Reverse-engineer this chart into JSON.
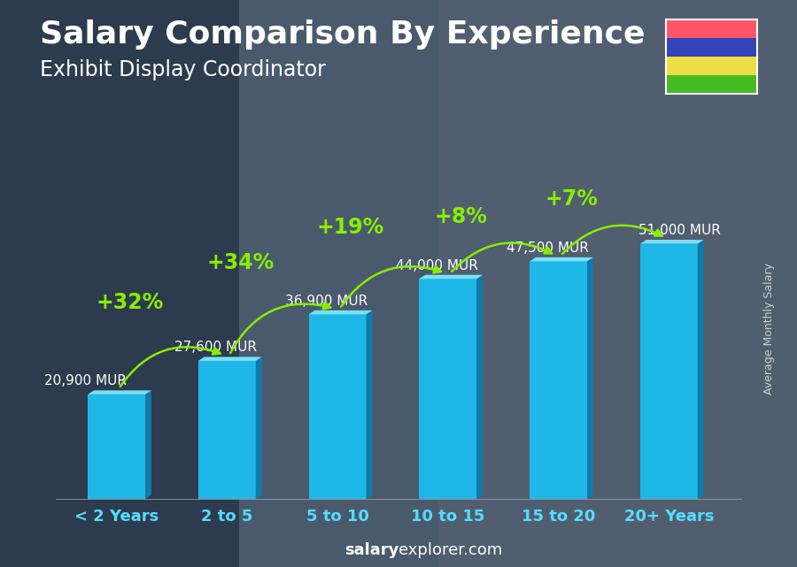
{
  "title": "Salary Comparison By Experience",
  "subtitle": "Exhibit Display Coordinator",
  "categories": [
    "< 2 Years",
    "2 to 5",
    "5 to 10",
    "10 to 15",
    "15 to 20",
    "20+ Years"
  ],
  "values": [
    20900,
    27600,
    36900,
    44000,
    47500,
    51000
  ],
  "labels": [
    "20,900 MUR",
    "27,600 MUR",
    "36,900 MUR",
    "44,000 MUR",
    "47,500 MUR",
    "51,000 MUR"
  ],
  "pct_labels": [
    "+32%",
    "+34%",
    "+19%",
    "+8%",
    "+7%"
  ],
  "bar_face_color": "#1eb8e8",
  "bar_right_color": "#0d7aab",
  "bar_top_color": "#7ae0f8",
  "bar_bottom_color": "#0a4a70",
  "ylabel": "Average Monthly Salary",
  "footer_bold": "salary",
  "footer_normal": "explorer.com",
  "bg_color": "#5a6b7a",
  "overlay_color": [
    0.12,
    0.18,
    0.27
  ],
  "overlay_alpha": 0.55,
  "text_color": "#ffffff",
  "cat_color": "#55ddff",
  "pct_color": "#88ee00",
  "label_color": "#ffffff",
  "arrow_color": "#88ee00",
  "ylim": [
    0,
    68000
  ],
  "title_fontsize": 26,
  "subtitle_fontsize": 17,
  "cat_fontsize": 13,
  "label_fontsize": 11,
  "pct_fontsize": 17,
  "ylabel_fontsize": 9,
  "footer_fontsize": 13,
  "mauritius_flag_colors": [
    "#FF5566",
    "#3344BB",
    "#EEDD44",
    "#44BB22"
  ]
}
